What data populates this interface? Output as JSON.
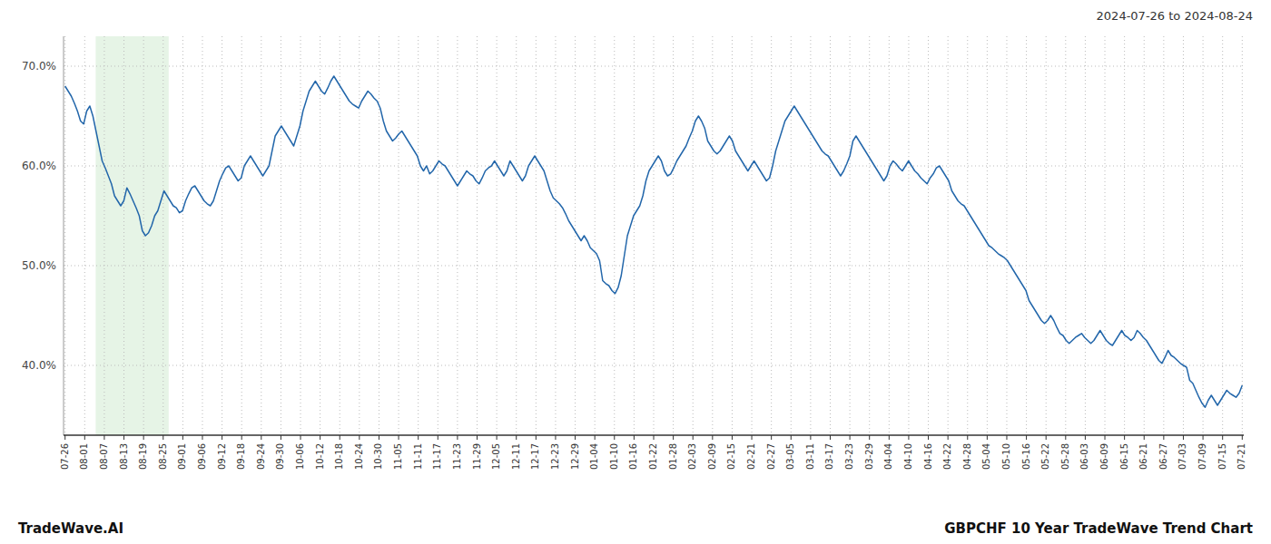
{
  "chart_data": {
    "type": "line",
    "title": "GBPCHF 10 Year TradeWave Trend Chart",
    "subtitle": "2024-07-26 to 2024-08-24",
    "annotations": [
      "TradeWave.AI"
    ],
    "color": "#2266aa",
    "grid": true,
    "highlight": {
      "start": 9.906,
      "end": 33.528,
      "color": "#d6ecd6"
    },
    "xlim": [
      -0.5,
      381.5
    ],
    "xticks": [
      {
        "value": 0,
        "label": "07-26"
      },
      {
        "value": 6.35,
        "label": "08-01"
      },
      {
        "value": 12.7,
        "label": "08-07"
      },
      {
        "value": 19.05,
        "label": "08-13"
      },
      {
        "value": 25.4,
        "label": "08-19"
      },
      {
        "value": 31.75,
        "label": "08-25"
      },
      {
        "value": 38.1,
        "label": "09-01"
      },
      {
        "value": 44.45,
        "label": "09-06"
      },
      {
        "value": 50.8,
        "label": "09-12"
      },
      {
        "value": 57.15,
        "label": "09-18"
      },
      {
        "value": 63.5,
        "label": "09-24"
      },
      {
        "value": 69.85,
        "label": "09-30"
      },
      {
        "value": 76.2,
        "label": "10-06"
      },
      {
        "value": 82.55,
        "label": "10-12"
      },
      {
        "value": 88.9,
        "label": "10-18"
      },
      {
        "value": 95.25,
        "label": "10-24"
      },
      {
        "value": 101.6,
        "label": "10-30"
      },
      {
        "value": 107.95,
        "label": "11-05"
      },
      {
        "value": 114.3,
        "label": "11-11"
      },
      {
        "value": 120.65,
        "label": "11-17"
      },
      {
        "value": 127,
        "label": "11-23"
      },
      {
        "value": 133.35,
        "label": "11-29"
      },
      {
        "value": 139.7,
        "label": "12-05"
      },
      {
        "value": 146.05,
        "label": "12-11"
      },
      {
        "value": 152.4,
        "label": "12-17"
      },
      {
        "value": 158.75,
        "label": "12-23"
      },
      {
        "value": 165.1,
        "label": "12-29"
      },
      {
        "value": 171.45,
        "label": "01-04"
      },
      {
        "value": 177.8,
        "label": "01-10"
      },
      {
        "value": 184.15,
        "label": "01-16"
      },
      {
        "value": 190.5,
        "label": "01-22"
      },
      {
        "value": 196.85,
        "label": "01-28"
      },
      {
        "value": 203.2,
        "label": "02-03"
      },
      {
        "value": 209.55,
        "label": "02-09"
      },
      {
        "value": 215.9,
        "label": "02-15"
      },
      {
        "value": 222.25,
        "label": "02-21"
      },
      {
        "value": 228.6,
        "label": "02-27"
      },
      {
        "value": 234.95,
        "label": "03-05"
      },
      {
        "value": 241.3,
        "label": "03-11"
      },
      {
        "value": 247.65,
        "label": "03-17"
      },
      {
        "value": 254,
        "label": "03-23"
      },
      {
        "value": 260.35,
        "label": "03-29"
      },
      {
        "value": 266.7,
        "label": "04-04"
      },
      {
        "value": 273.05,
        "label": "04-10"
      },
      {
        "value": 279.4,
        "label": "04-16"
      },
      {
        "value": 285.75,
        "label": "04-22"
      },
      {
        "value": 292.1,
        "label": "04-28"
      },
      {
        "value": 298.45,
        "label": "05-04"
      },
      {
        "value": 304.8,
        "label": "05-10"
      },
      {
        "value": 311.15,
        "label": "05-16"
      },
      {
        "value": 317.5,
        "label": "05-22"
      },
      {
        "value": 323.85,
        "label": "05-28"
      },
      {
        "value": 330.2,
        "label": "06-03"
      },
      {
        "value": 336.55,
        "label": "06-09"
      },
      {
        "value": 342.9,
        "label": "06-15"
      },
      {
        "value": 349.25,
        "label": "06-21"
      },
      {
        "value": 355.6,
        "label": "06-27"
      },
      {
        "value": 361.95,
        "label": "07-03"
      },
      {
        "value": 368.3,
        "label": "07-09"
      },
      {
        "value": 374.65,
        "label": "07-15"
      },
      {
        "value": 381,
        "label": "07-21"
      }
    ],
    "ylim": [
      33.0,
      73.0
    ],
    "yticks": [
      {
        "value": 40.0,
        "label": "40.0%"
      },
      {
        "value": 50.0,
        "label": "50.0%"
      },
      {
        "value": 60.0,
        "label": "60.0%"
      },
      {
        "value": 70.0,
        "label": "70.0%"
      }
    ],
    "values": [
      68.0,
      67.5,
      67.0,
      66.3,
      65.5,
      64.5,
      64.2,
      65.5,
      66.0,
      65.0,
      63.5,
      62.0,
      60.5,
      59.8,
      59.0,
      58.2,
      57.0,
      56.5,
      56.0,
      56.5,
      57.8,
      57.2,
      56.5,
      55.8,
      55.0,
      53.5,
      53.0,
      53.3,
      54.0,
      55.0,
      55.5,
      56.5,
      57.5,
      57.0,
      56.5,
      56.0,
      55.8,
      55.3,
      55.5,
      56.5,
      57.2,
      57.8,
      58.0,
      57.5,
      57.0,
      56.5,
      56.2,
      56.0,
      56.5,
      57.5,
      58.5,
      59.2,
      59.8,
      60.0,
      59.5,
      59.0,
      58.5,
      58.8,
      60.0,
      60.5,
      61.0,
      60.5,
      60.0,
      59.5,
      59.0,
      59.5,
      60.0,
      61.5,
      63.0,
      63.5,
      64.0,
      63.5,
      63.0,
      62.5,
      62.0,
      63.0,
      64.0,
      65.5,
      66.5,
      67.5,
      68.0,
      68.5,
      68.0,
      67.5,
      67.2,
      67.8,
      68.5,
      69.0,
      68.5,
      68.0,
      67.5,
      67.0,
      66.5,
      66.2,
      66.0,
      65.8,
      66.5,
      67.0,
      67.5,
      67.2,
      66.8,
      66.5,
      65.8,
      64.5,
      63.5,
      63.0,
      62.5,
      62.8,
      63.2,
      63.5,
      63.0,
      62.5,
      62.0,
      61.5,
      61.0,
      60.0,
      59.5,
      60.0,
      59.2,
      59.5,
      60.0,
      60.5,
      60.2,
      60.0,
      59.5,
      59.0,
      58.5,
      58.0,
      58.5,
      59.0,
      59.5,
      59.2,
      59.0,
      58.5,
      58.2,
      58.8,
      59.5,
      59.8,
      60.0,
      60.5,
      60.0,
      59.5,
      59.0,
      59.5,
      60.5,
      60.0,
      59.5,
      59.0,
      58.5,
      59.0,
      60.0,
      60.5,
      61.0,
      60.5,
      60.0,
      59.5,
      58.5,
      57.5,
      56.8,
      56.5,
      56.2,
      55.8,
      55.2,
      54.5,
      54.0,
      53.5,
      53.0,
      52.5,
      53.0,
      52.5,
      51.8,
      51.5,
      51.2,
      50.5,
      48.5,
      48.2,
      48.0,
      47.5,
      47.2,
      47.8,
      49.0,
      51.0,
      53.0,
      54.0,
      55.0,
      55.5,
      56.0,
      57.0,
      58.5,
      59.5,
      60.0,
      60.5,
      61.0,
      60.5,
      59.5,
      59.0,
      59.2,
      59.8,
      60.5,
      61.0,
      61.5,
      62.0,
      62.8,
      63.5,
      64.5,
      65.0,
      64.5,
      63.8,
      62.5,
      62.0,
      61.5,
      61.2,
      61.5,
      62.0,
      62.5,
      63.0,
      62.5,
      61.5,
      61.0,
      60.5,
      60.0,
      59.5,
      60.0,
      60.5,
      60.0,
      59.5,
      59.0,
      58.5,
      58.8,
      60.0,
      61.5,
      62.5,
      63.5,
      64.5,
      65.0,
      65.5,
      66.0,
      65.5,
      65.0,
      64.5,
      64.0,
      63.5,
      63.0,
      62.5,
      62.0,
      61.5,
      61.2,
      61.0,
      60.5,
      60.0,
      59.5,
      59.0,
      59.5,
      60.2,
      61.0,
      62.5,
      63.0,
      62.5,
      62.0,
      61.5,
      61.0,
      60.5,
      60.0,
      59.5,
      59.0,
      58.5,
      59.0,
      60.0,
      60.5,
      60.2,
      59.8,
      59.5,
      60.0,
      60.5,
      60.0,
      59.5,
      59.2,
      58.8,
      58.5,
      58.2,
      58.8,
      59.2,
      59.8,
      60.0,
      59.5,
      59.0,
      58.5,
      57.5,
      57.0,
      56.5,
      56.2,
      56.0,
      55.5,
      55.0,
      54.5,
      54.0,
      53.5,
      53.0,
      52.5,
      52.0,
      51.8,
      51.5,
      51.2,
      51.0,
      50.8,
      50.5,
      50.0,
      49.5,
      49.0,
      48.5,
      48.0,
      47.5,
      46.5,
      46.0,
      45.5,
      45.0,
      44.5,
      44.2,
      44.5,
      45.0,
      44.5,
      43.8,
      43.2,
      43.0,
      42.5,
      42.2,
      42.5,
      42.8,
      43.0,
      43.2,
      42.8,
      42.5,
      42.2,
      42.5,
      43.0,
      43.5,
      43.0,
      42.5,
      42.2,
      42.0,
      42.5,
      43.0,
      43.5,
      43.0,
      42.8,
      42.5,
      42.8,
      43.5,
      43.2,
      42.8,
      42.5,
      42.0,
      41.5,
      41.0,
      40.5,
      40.2,
      40.8,
      41.5,
      41.0,
      40.8,
      40.5,
      40.2,
      40.0,
      39.8,
      38.5,
      38.2,
      37.5,
      36.8,
      36.2,
      35.8,
      36.5,
      37.0,
      36.5,
      36.0,
      36.5,
      37.0,
      37.5,
      37.2,
      37.0,
      36.8,
      37.2,
      38.0
    ]
  }
}
